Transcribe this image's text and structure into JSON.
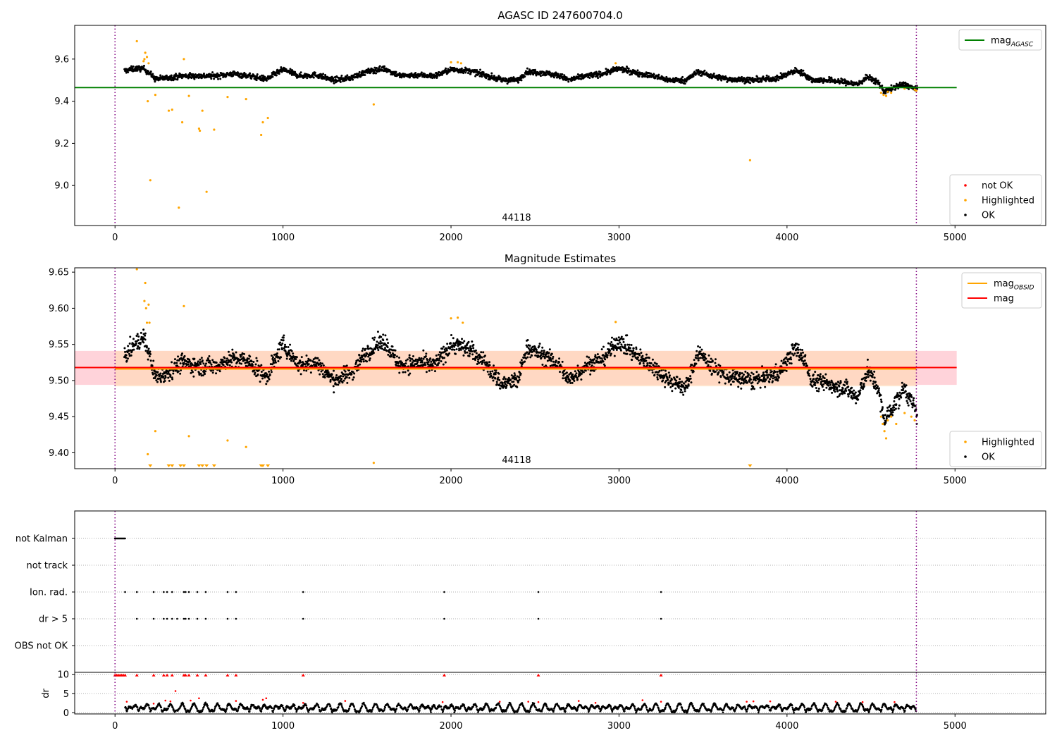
{
  "colors": {
    "ok": "#000000",
    "highlighted": "#ffa500",
    "not_ok": "#ff0000",
    "agasc_line": "#008000",
    "mag_line": "#ff0000",
    "obsid_line": "#ffa500",
    "band_red": "#ffc0cb",
    "band_orange": "#ffdab9",
    "vline": "#800080"
  },
  "chart_data": [
    {
      "type": "scatter",
      "title": "AGASC ID 247600704.0",
      "xlim": [
        -240,
        5540
      ],
      "ylim": [
        8.81,
        9.76
      ],
      "x_ticks": [
        0,
        1000,
        2000,
        3000,
        4000,
        5000
      ],
      "y_ticks": [
        9.0,
        9.2,
        9.4,
        9.6
      ],
      "grid": false,
      "vlines": [
        0,
        4770
      ],
      "hlines": [
        {
          "name": "mag_AGASC",
          "y": 9.465,
          "x": [
            -240,
            5010
          ]
        }
      ],
      "annotation": "44118",
      "legends": [
        {
          "placement": "upper-right",
          "entries": [
            {
              "label": "mag",
              "sub": "AGASC",
              "kind": "line",
              "color": "#008000"
            }
          ]
        },
        {
          "placement": "lower-right",
          "entries": [
            {
              "label": "not OK",
              "kind": "dot",
              "color": "#ff0000"
            },
            {
              "label": "Highlighted",
              "kind": "dot",
              "color": "#ffa500"
            },
            {
              "label": "OK",
              "kind": "dot",
              "color": "#000000"
            }
          ]
        }
      ],
      "ok_trend": [
        [
          60,
          9.545
        ],
        [
          120,
          9.555
        ],
        [
          170,
          9.555
        ],
        [
          210,
          9.53
        ],
        [
          240,
          9.505
        ],
        [
          300,
          9.51
        ],
        [
          400,
          9.52
        ],
        [
          500,
          9.52
        ],
        [
          600,
          9.52
        ],
        [
          700,
          9.53
        ],
        [
          800,
          9.52
        ],
        [
          900,
          9.505
        ],
        [
          1000,
          9.55
        ],
        [
          1100,
          9.52
        ],
        [
          1200,
          9.525
        ],
        [
          1300,
          9.5
        ],
        [
          1400,
          9.51
        ],
        [
          1500,
          9.54
        ],
        [
          1600,
          9.555
        ],
        [
          1700,
          9.52
        ],
        [
          1800,
          9.525
        ],
        [
          1900,
          9.52
        ],
        [
          2000,
          9.55
        ],
        [
          2100,
          9.545
        ],
        [
          2200,
          9.525
        ],
        [
          2300,
          9.5
        ],
        [
          2400,
          9.5
        ],
        [
          2450,
          9.54
        ],
        [
          2550,
          9.535
        ],
        [
          2650,
          9.52
        ],
        [
          2700,
          9.5
        ],
        [
          2800,
          9.52
        ],
        [
          2900,
          9.53
        ],
        [
          3000,
          9.555
        ],
        [
          3100,
          9.535
        ],
        [
          3200,
          9.52
        ],
        [
          3300,
          9.5
        ],
        [
          3400,
          9.5
        ],
        [
          3470,
          9.54
        ],
        [
          3550,
          9.52
        ],
        [
          3650,
          9.505
        ],
        [
          3800,
          9.5
        ],
        [
          3950,
          9.51
        ],
        [
          4050,
          9.545
        ],
        [
          4100,
          9.53
        ],
        [
          4150,
          9.5
        ],
        [
          4250,
          9.5
        ],
        [
          4350,
          9.49
        ],
        [
          4420,
          9.48
        ],
        [
          4480,
          9.515
        ],
        [
          4540,
          9.49
        ],
        [
          4580,
          9.445
        ],
        [
          4650,
          9.47
        ],
        [
          4700,
          9.48
        ],
        [
          4770,
          9.455
        ]
      ],
      "ok_noise": 0.013,
      "ok_count": 2600,
      "highlighted": [
        [
          130,
          9.685
        ],
        [
          180,
          9.63
        ],
        [
          175,
          9.6
        ],
        [
          170,
          9.59
        ],
        [
          190,
          9.61
        ],
        [
          200,
          9.58
        ],
        [
          195,
          9.4
        ],
        [
          210,
          9.025
        ],
        [
          240,
          9.43
        ],
        [
          320,
          9.355
        ],
        [
          340,
          9.36
        ],
        [
          380,
          8.895
        ],
        [
          400,
          9.3
        ],
        [
          410,
          9.6
        ],
        [
          440,
          9.425
        ],
        [
          500,
          9.27
        ],
        [
          505,
          9.26
        ],
        [
          520,
          9.355
        ],
        [
          545,
          8.97
        ],
        [
          590,
          9.265
        ],
        [
          670,
          9.42
        ],
        [
          780,
          9.41
        ],
        [
          870,
          9.24
        ],
        [
          880,
          9.3
        ],
        [
          910,
          9.32
        ],
        [
          1540,
          9.385
        ],
        [
          2000,
          9.585
        ],
        [
          2040,
          9.585
        ],
        [
          2060,
          9.58
        ],
        [
          2980,
          9.58
        ],
        [
          3780,
          9.12
        ],
        [
          4560,
          9.44
        ],
        [
          4575,
          9.43
        ],
        [
          4590,
          9.425
        ],
        [
          4600,
          9.445
        ],
        [
          4620,
          9.44
        ],
        [
          4700,
          9.46
        ],
        [
          4760,
          9.455
        ],
        [
          4770,
          9.45
        ]
      ]
    },
    {
      "type": "scatter",
      "title": "Magnitude Estimates",
      "xlim": [
        -240,
        5540
      ],
      "ylim": [
        9.378,
        9.656
      ],
      "x_ticks": [
        0,
        1000,
        2000,
        3000,
        4000,
        5000
      ],
      "y_ticks": [
        9.4,
        9.45,
        9.5,
        9.55,
        9.6,
        9.65
      ],
      "grid": false,
      "vlines": [
        0,
        4770
      ],
      "hlines": [
        {
          "name": "mag",
          "y": 9.518,
          "x": [
            -240,
            5010
          ]
        },
        {
          "name": "mag_OBSID",
          "y": 9.516,
          "x": [
            0,
            4770
          ]
        }
      ],
      "bands": [
        {
          "y": [
            9.494,
            9.541
          ],
          "x": [
            -240,
            5010
          ],
          "color": "#ffc0cb"
        },
        {
          "y": [
            9.492,
            9.541
          ],
          "x": [
            0,
            4770
          ],
          "color": "#ffdab9"
        }
      ],
      "annotation": "44118",
      "legends": [
        {
          "placement": "upper-right",
          "entries": [
            {
              "label": "mag",
              "sub": "OBSID",
              "kind": "line",
              "color": "#ffa500"
            },
            {
              "label": "mag",
              "kind": "line",
              "color": "#ff0000"
            }
          ]
        },
        {
          "placement": "lower-right",
          "entries": [
            {
              "label": "Highlighted",
              "kind": "dot",
              "color": "#ffa500"
            },
            {
              "label": "OK",
              "kind": "dot",
              "color": "#000000"
            }
          ]
        }
      ],
      "ok_trend": [
        [
          60,
          9.535
        ],
        [
          120,
          9.55
        ],
        [
          170,
          9.56
        ],
        [
          210,
          9.53
        ],
        [
          240,
          9.505
        ],
        [
          300,
          9.51
        ],
        [
          400,
          9.525
        ],
        [
          500,
          9.52
        ],
        [
          600,
          9.52
        ],
        [
          700,
          9.53
        ],
        [
          800,
          9.525
        ],
        [
          900,
          9.505
        ],
        [
          1000,
          9.55
        ],
        [
          1100,
          9.52
        ],
        [
          1200,
          9.525
        ],
        [
          1300,
          9.5
        ],
        [
          1400,
          9.51
        ],
        [
          1500,
          9.54
        ],
        [
          1600,
          9.555
        ],
        [
          1700,
          9.52
        ],
        [
          1800,
          9.525
        ],
        [
          1900,
          9.52
        ],
        [
          2000,
          9.55
        ],
        [
          2100,
          9.545
        ],
        [
          2200,
          9.525
        ],
        [
          2300,
          9.495
        ],
        [
          2400,
          9.5
        ],
        [
          2450,
          9.545
        ],
        [
          2550,
          9.535
        ],
        [
          2650,
          9.52
        ],
        [
          2700,
          9.5
        ],
        [
          2800,
          9.52
        ],
        [
          2900,
          9.53
        ],
        [
          3000,
          9.555
        ],
        [
          3100,
          9.535
        ],
        [
          3200,
          9.52
        ],
        [
          3300,
          9.5
        ],
        [
          3400,
          9.49
        ],
        [
          3470,
          9.54
        ],
        [
          3550,
          9.52
        ],
        [
          3650,
          9.505
        ],
        [
          3800,
          9.5
        ],
        [
          3950,
          9.51
        ],
        [
          4050,
          9.545
        ],
        [
          4100,
          9.53
        ],
        [
          4150,
          9.5
        ],
        [
          4250,
          9.495
        ],
        [
          4350,
          9.49
        ],
        [
          4420,
          9.475
        ],
        [
          4480,
          9.515
        ],
        [
          4540,
          9.49
        ],
        [
          4580,
          9.445
        ],
        [
          4650,
          9.47
        ],
        [
          4700,
          9.49
        ],
        [
          4770,
          9.455
        ]
      ],
      "ok_noise": 0.012,
      "ok_count": 2600,
      "highlighted": [
        [
          130,
          9.654
        ],
        [
          175,
          9.61
        ],
        [
          180,
          9.635
        ],
        [
          185,
          9.6
        ],
        [
          190,
          9.58
        ],
        [
          200,
          9.605
        ],
        [
          205,
          9.58
        ],
        [
          195,
          9.398
        ],
        [
          240,
          9.43
        ],
        [
          410,
          9.603
        ],
        [
          440,
          9.423
        ],
        [
          670,
          9.417
        ],
        [
          780,
          9.408
        ],
        [
          1540,
          9.386
        ],
        [
          2000,
          9.586
        ],
        [
          2040,
          9.587
        ],
        [
          2070,
          9.58
        ],
        [
          2980,
          9.581
        ],
        [
          4560,
          9.45
        ],
        [
          4570,
          9.44
        ],
        [
          4580,
          9.43
        ],
        [
          4590,
          9.42
        ],
        [
          4600,
          9.445
        ],
        [
          4620,
          9.45
        ],
        [
          4650,
          9.44
        ],
        [
          4700,
          9.455
        ],
        [
          4740,
          9.45
        ],
        [
          4760,
          9.445
        ]
      ],
      "clipped_low": [
        210,
        320,
        340,
        390,
        410,
        500,
        520,
        545,
        590,
        870,
        880,
        910,
        3780
      ]
    },
    {
      "type": "scatter",
      "title": "",
      "xlim": [
        -240,
        5540
      ],
      "vlines": [
        0,
        4770
      ],
      "categories": [
        "not Kalman",
        "not track",
        "Ion. rad.",
        "dr > 5",
        "OBS not OK"
      ],
      "grid": true,
      "flags": {
        "not Kalman": [
          0,
          5,
          10,
          15,
          20,
          25,
          30,
          35,
          40,
          45,
          50,
          55,
          60
        ],
        "not track": [],
        "Ion. rad.": [
          60,
          130,
          230,
          290,
          310,
          340,
          410,
          420,
          440,
          490,
          540,
          670,
          720,
          1120,
          1960,
          2520,
          3250
        ],
        "dr > 5": [
          130,
          230,
          290,
          310,
          340,
          370,
          410,
          420,
          440,
          490,
          540,
          670,
          720,
          1120,
          1960,
          2520,
          3250
        ],
        "OBS not OK": []
      }
    },
    {
      "type": "scatter",
      "title": "",
      "xlim": [
        -240,
        5540
      ],
      "ylim": [
        -0.3,
        10.6
      ],
      "ylabel": "dr",
      "x_ticks": [
        0,
        1000,
        2000,
        3000,
        4000,
        5000
      ],
      "y_ticks": [
        0,
        5,
        10
      ],
      "grid": true,
      "vlines": [
        0,
        4770
      ],
      "clipped_high": [
        0,
        10,
        20,
        30,
        40,
        50,
        60,
        130,
        230,
        290,
        310,
        340,
        410,
        420,
        440,
        490,
        540,
        670,
        720,
        1120,
        1960,
        2520,
        3250
      ],
      "dr_count": 2300,
      "dr_max": 3.6,
      "red_points": [
        [
          70,
          2.9
        ],
        [
          230,
          2.4
        ],
        [
          300,
          3.2
        ],
        [
          330,
          3.0
        ],
        [
          360,
          5.7
        ],
        [
          450,
          3.2
        ],
        [
          500,
          3.8
        ],
        [
          720,
          3.1
        ],
        [
          880,
          3.4
        ],
        [
          900,
          3.8
        ],
        [
          1120,
          2.6
        ],
        [
          1370,
          3.1
        ],
        [
          1950,
          2.8
        ],
        [
          2290,
          2.9
        ],
        [
          2460,
          2.9
        ],
        [
          2520,
          2.8
        ],
        [
          2760,
          3.1
        ],
        [
          2860,
          2.6
        ],
        [
          3140,
          3.3
        ],
        [
          3250,
          2.9
        ],
        [
          3760,
          2.9
        ],
        [
          3800,
          3.0
        ],
        [
          3900,
          3.0
        ],
        [
          4290,
          2.9
        ],
        [
          4450,
          2.8
        ],
        [
          4640,
          2.8
        ]
      ]
    }
  ]
}
